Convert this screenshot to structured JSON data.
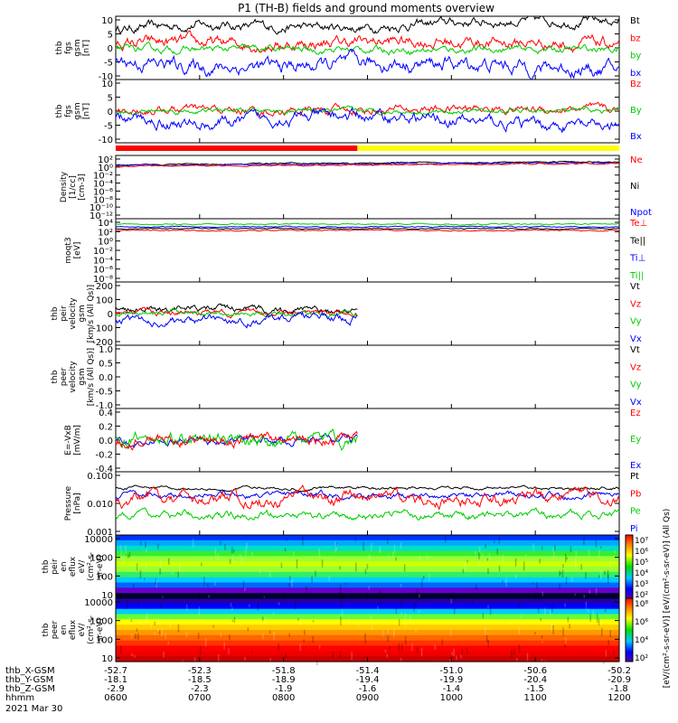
{
  "title": "P1 (TH-B) fields and ground moments overview",
  "chart_data": {
    "type": "line",
    "x_time_labels": [
      "0600",
      "0700",
      "0800",
      "0900",
      "1000",
      "1100",
      "1200"
    ],
    "date_label": "2021 Mar 30",
    "position_rows": [
      {
        "label": "thb_X-GSM",
        "values": [
          "-52.7",
          "-52.3",
          "-51.8",
          "-51.4",
          "-51.0",
          "-50.6",
          "-50.2"
        ]
      },
      {
        "label": "thb_Y-GSM",
        "values": [
          "-18.1",
          "-18.5",
          "-18.9",
          "-19.4",
          "-19.9",
          "-20.4",
          "-20.9"
        ]
      },
      {
        "label": "thb_Z-GSM",
        "values": [
          "-2.9",
          "-2.3",
          "-1.9",
          "-1.6",
          "-1.4",
          "-1.5",
          "-1.8"
        ]
      },
      {
        "label": "hhmm",
        "values": [
          "0600",
          "0700",
          "0800",
          "0900",
          "1000",
          "1100",
          "1200"
        ]
      }
    ],
    "panels": [
      {
        "id": "fgs_gsm",
        "ylabel": [
          "thb",
          "fgs",
          "gsm",
          "[nT]"
        ],
        "ylim": [
          -10,
          10
        ],
        "ticks": [
          "10",
          "5",
          "0",
          "-5",
          "-10"
        ],
        "legend": [
          {
            "name": "Bt",
            "color": "#000000"
          },
          {
            "name": "bz",
            "color": "#ff0000"
          },
          {
            "name": "by",
            "color": "#00cc00"
          },
          {
            "name": "bx",
            "color": "#0000ff"
          }
        ],
        "series_levels": [
          {
            "name": "Bt",
            "color": "#000000",
            "base": [
              6,
              7.5,
              6.5,
              6.5,
              8,
              8.5,
              8.5
            ],
            "noise": 0.8
          },
          {
            "name": "bz",
            "color": "#ff0000",
            "base": [
              1.5,
              1.5,
              1,
              2,
              2,
              1.5,
              1
            ],
            "noise": 1.0
          },
          {
            "name": "by",
            "color": "#00cc00",
            "base": [
              -0.5,
              -0.5,
              -0.5,
              -0.5,
              -0.5,
              -0.5,
              -0.5
            ],
            "noise": 0.6
          },
          {
            "name": "bx",
            "color": "#0000ff",
            "base": [
              -4,
              -6,
              -6,
              -5,
              -5,
              -6,
              -7
            ],
            "noise": 1.2
          }
        ]
      },
      {
        "id": "fgs_gsm2",
        "ylabel": [
          "thb",
          "fgs",
          "gsm",
          "[nT]"
        ],
        "ylim": [
          -14,
          14
        ],
        "ticks": [
          "10",
          "5",
          "0",
          "-5",
          "-10"
        ],
        "legend": [
          {
            "name": "Bz",
            "color": "#ff0000"
          },
          {
            "name": "By",
            "color": "#00cc00"
          },
          {
            "name": "Bx",
            "color": "#0000ff"
          }
        ],
        "series_levels": [
          {
            "name": "Bz",
            "color": "#ff0000",
            "base": [
              0.5,
              0.5,
              0,
              0.5,
              1,
              1,
              0.5
            ],
            "noise": 1.0
          },
          {
            "name": "By",
            "color": "#00cc00",
            "base": [
              0,
              0,
              0,
              0,
              0,
              0,
              0
            ],
            "noise": 0.6
          },
          {
            "name": "Bx",
            "color": "#0000ff",
            "base": [
              -3,
              -6,
              -3,
              -2,
              -4,
              -6,
              -7
            ],
            "noise": 1.4
          }
        ]
      },
      {
        "id": "density",
        "ylabel": [
          "Density",
          "[1/cc]",
          "[cm-3]"
        ],
        "ticks": [
          "10²",
          "10⁰",
          "10⁻²",
          "10⁻⁴",
          "10⁻⁶",
          "10⁻⁸",
          "10⁻¹⁰",
          "10⁻¹²"
        ],
        "legend": [
          {
            "name": "Ne",
            "color": "#ff0000"
          },
          {
            "name": "Ni",
            "color": "#000000"
          },
          {
            "name": "Npot",
            "color": "#0000ff"
          }
        ]
      },
      {
        "id": "temperature",
        "ylabel": [
          "moqt3",
          "[eV]"
        ],
        "ticks": [
          "10⁴",
          "10²",
          "10⁰",
          "10⁻²",
          "10⁻⁴",
          "10⁻⁶",
          "10⁻⁸"
        ],
        "legend": [
          {
            "name": "Te⊥",
            "color": "#ff0000"
          },
          {
            "name": "Te||",
            "color": "#000000"
          },
          {
            "name": "Ti⊥",
            "color": "#0000ff"
          },
          {
            "name": "Ti||",
            "color": "#00cc00"
          }
        ]
      },
      {
        "id": "velocity1",
        "ylabel": [
          "thb",
          "peir",
          "velocity",
          "gsm",
          "[km/s (All Qs)]"
        ],
        "ylim": [
          -200,
          200
        ],
        "ticks": [
          "200",
          "100",
          "0",
          "-100",
          "-200"
        ],
        "legend": [
          {
            "name": "Vt",
            "color": "#000000"
          },
          {
            "name": "Vz",
            "color": "#ff0000"
          },
          {
            "name": "Vy",
            "color": "#00cc00"
          },
          {
            "name": "Vx",
            "color": "#0000ff"
          }
        ]
      },
      {
        "id": "velocity2",
        "ylabel": [
          "thb",
          "peer",
          "velocity",
          "gsm",
          "[km/s (All Qs)]"
        ],
        "ticks": [
          "1.0",
          "0.5",
          "0.0",
          "-0.5",
          "-1.0"
        ],
        "legend": [
          {
            "name": "Vt",
            "color": "#000000"
          },
          {
            "name": "Vz",
            "color": "#ff0000"
          },
          {
            "name": "Vy",
            "color": "#00cc00"
          },
          {
            "name": "Vx",
            "color": "#0000ff"
          }
        ]
      },
      {
        "id": "efield",
        "ylabel": [
          "E=-VxB",
          "[mV/m]"
        ],
        "ylim": [
          -0.4,
          0.4
        ],
        "ticks": [
          "0.4",
          "0.2",
          "0.0",
          "-0.2",
          "-0.4"
        ],
        "legend": [
          {
            "name": "Ez",
            "color": "#ff0000"
          },
          {
            "name": "Ey",
            "color": "#00cc00"
          },
          {
            "name": "Ex",
            "color": "#0000ff"
          }
        ]
      },
      {
        "id": "pressure",
        "ylabel": [
          "Pressure",
          "[nPa]"
        ],
        "ticks": [
          "0.100",
          "0.010",
          "0.001"
        ],
        "legend": [
          {
            "name": "Pt",
            "color": "#000000"
          },
          {
            "name": "Pb",
            "color": "#ff0000"
          },
          {
            "name": "Pe",
            "color": "#00cc00"
          },
          {
            "name": "Pi",
            "color": "#0000ff"
          }
        ]
      },
      {
        "id": "ion_spec",
        "ylabel": [
          "thb",
          "peir",
          "en",
          "eflux",
          "eV/",
          "(cm²-s-",
          "sr-eV)"
        ],
        "ticks": [
          "10000",
          "1000",
          "100",
          "10"
        ],
        "colorbar_ticks": [
          "10⁷",
          "10⁶",
          "10⁵",
          "10⁴",
          "10³",
          "10²"
        ]
      },
      {
        "id": "electron_spec",
        "ylabel": [
          "thb",
          "peer",
          "en",
          "eflux",
          "eV/",
          "(cm²-s-",
          "sr-eV)"
        ],
        "ticks": [
          "10000",
          "1000",
          "100",
          "10"
        ],
        "colorbar_ticks": [
          "10⁸",
          "10⁶",
          "10⁴",
          "10²"
        ]
      }
    ],
    "colorbar_label": "[eV/(cm²-s-sr-eV)] [eV/(cm²-s-sr-eV)] (All Qs)",
    "mode_bar": {
      "colors": [
        "#ff0000",
        "#ffff00"
      ],
      "split_fraction": 0.48
    }
  }
}
